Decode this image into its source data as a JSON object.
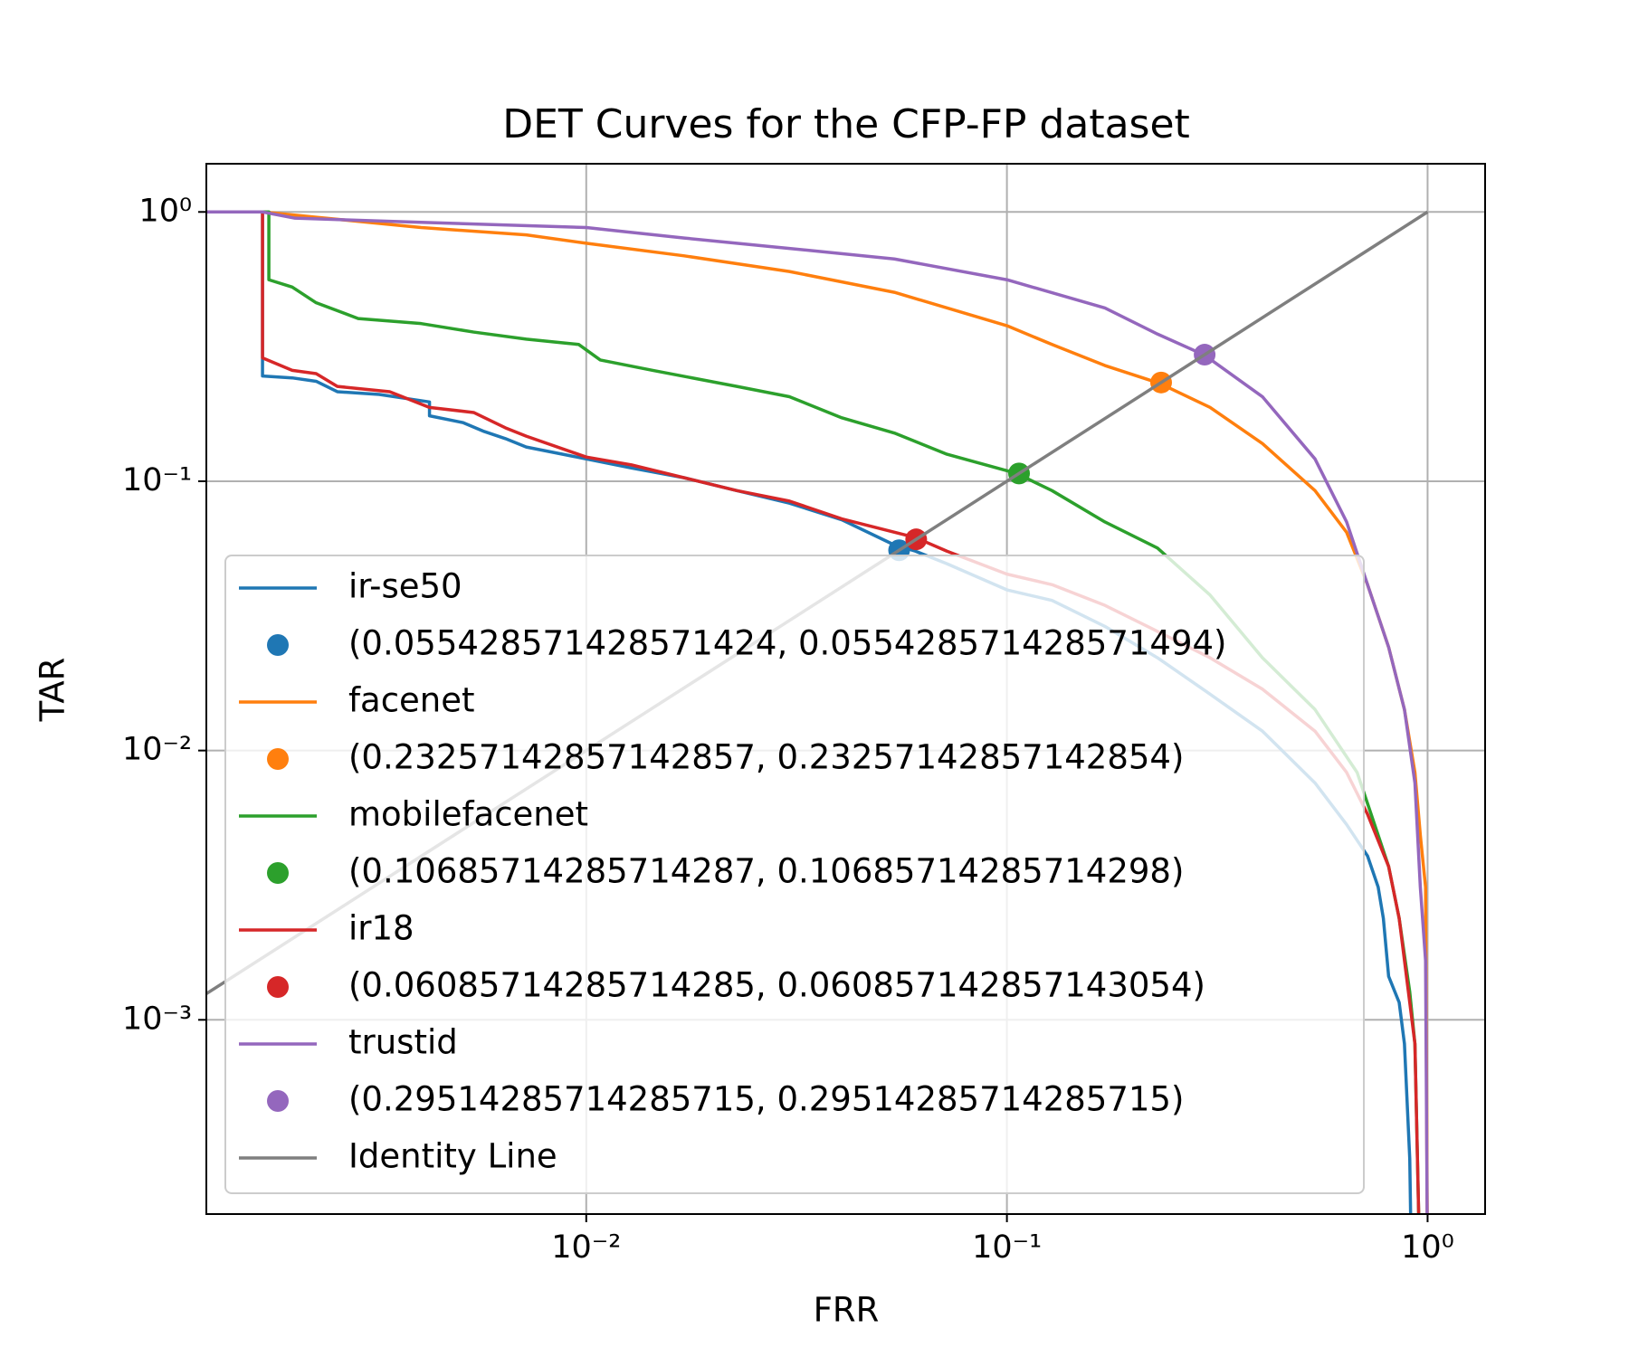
{
  "chart_data": {
    "type": "line",
    "title": "DET Curves for the CFP-FP dataset",
    "x_label": "FRR",
    "y_label": "TAR",
    "xscale": "log",
    "yscale": "log",
    "xlim": [
      0.00125,
      1.37
    ],
    "ylim": [
      0.00019,
      1.51
    ],
    "xticks": [
      {
        "value": 0.01,
        "label": "10⁻²"
      },
      {
        "value": 0.1,
        "label": "10⁻¹"
      },
      {
        "value": 1,
        "label": "10⁰"
      }
    ],
    "yticks": [
      {
        "value": 0.001,
        "label": "10⁻³"
      },
      {
        "value": 0.01,
        "label": "10⁻²"
      },
      {
        "value": 0.1,
        "label": "10⁻¹"
      },
      {
        "value": 1,
        "label": "10⁰"
      }
    ],
    "grid": true,
    "legend": "lower left",
    "series": [
      {
        "name": "ir-se50",
        "type": "line",
        "color": "#1f77b4",
        "x": [
          0.00125,
          0.0017,
          0.0017,
          0.002,
          0.00228,
          0.00256,
          0.00322,
          0.00424,
          0.00424,
          0.0051,
          0.00572,
          0.00642,
          0.0072,
          0.01,
          0.0128,
          0.0171,
          0.0228,
          0.0304,
          0.0405,
          0.054,
          0.0606,
          0.072,
          0.1,
          0.128,
          0.171,
          0.228,
          0.304,
          0.405,
          0.54,
          0.642,
          0.72,
          0.763,
          0.785,
          0.808,
          0.856,
          0.881,
          0.907,
          0.917
        ],
        "values": [
          1,
          1,
          0.246,
          0.242,
          0.235,
          0.215,
          0.21,
          0.197,
          0.175,
          0.165,
          0.153,
          0.144,
          0.134,
          0.121,
          0.112,
          0.103,
          0.0923,
          0.0829,
          0.0719,
          0.058,
          0.055,
          0.0494,
          0.0395,
          0.0361,
          0.0289,
          0.0221,
          0.0162,
          0.0118,
          0.00758,
          0.00531,
          0.00406,
          0.00311,
          0.00238,
          0.00145,
          0.00116,
          0.000815,
          0.000305,
          0.0001
        ]
      },
      {
        "name": "(0.055428571428571424, 0.055428571428571494)",
        "type": "scatter",
        "color": "#1f77b4",
        "x": [
          0.055428571428571424
        ],
        "values": [
          0.055428571428571494
        ]
      },
      {
        "name": "facenet",
        "type": "line",
        "color": "#ff7f0e",
        "x": [
          0.00125,
          0.0017,
          0.00228,
          0.00405,
          0.0072,
          0.01,
          0.0171,
          0.0304,
          0.054,
          0.1,
          0.128,
          0.171,
          0.2305,
          0.304,
          0.405,
          0.54,
          0.642,
          0.72,
          0.808,
          0.881,
          0.933,
          0.961,
          0.989,
          1.0
        ],
        "values": [
          1,
          1,
          0.956,
          0.875,
          0.822,
          0.765,
          0.687,
          0.601,
          0.503,
          0.378,
          0.322,
          0.269,
          0.231,
          0.188,
          0.138,
          0.0923,
          0.0646,
          0.0413,
          0.0242,
          0.0142,
          0.00829,
          0.00485,
          0.00311,
          0.0001
        ]
      },
      {
        "name": "(0.23257142857142857, 0.23257142857142854)",
        "type": "scatter",
        "color": "#ff7f0e",
        "x": [
          0.23257142857142857
        ],
        "values": [
          0.23257142857142854
        ]
      },
      {
        "name": "mobilefacenet",
        "type": "line",
        "color": "#2ca02c",
        "x": [
          0.00125,
          0.00176,
          0.00176,
          0.002,
          0.00228,
          0.00287,
          0.00405,
          0.0054,
          0.0072,
          0.0096,
          0.0108,
          0.0144,
          0.0228,
          0.0304,
          0.0405,
          0.054,
          0.072,
          0.1053,
          0.128,
          0.171,
          0.228,
          0.304,
          0.405,
          0.54,
          0.68,
          0.763,
          0.808,
          0.856,
          0.907,
          0.933,
          0.961
        ],
        "values": [
          1,
          1,
          0.56,
          0.526,
          0.46,
          0.402,
          0.385,
          0.358,
          0.337,
          0.322,
          0.282,
          0.258,
          0.225,
          0.206,
          0.172,
          0.151,
          0.126,
          0.107,
          0.0923,
          0.0706,
          0.0565,
          0.0378,
          0.0221,
          0.0142,
          0.00829,
          0.00485,
          0.00371,
          0.00238,
          0.00127,
          0.000815,
          0.0001
        ]
      },
      {
        "name": "(0.10685714285714287, 0.10685714285714298)",
        "type": "scatter",
        "color": "#2ca02c",
        "x": [
          0.10685714285714287
        ],
        "values": [
          0.10685714285714298
        ]
      },
      {
        "name": "ir18",
        "type": "line",
        "color": "#d62728",
        "x": [
          0.00125,
          0.0017,
          0.0017,
          0.002,
          0.00228,
          0.00256,
          0.00341,
          0.00424,
          0.0054,
          0.00642,
          0.0072,
          0.01,
          0.0128,
          0.0171,
          0.0228,
          0.0304,
          0.0405,
          0.0606,
          0.072,
          0.1,
          0.128,
          0.171,
          0.228,
          0.304,
          0.405,
          0.54,
          0.642,
          0.72,
          0.808,
          0.856,
          0.907,
          0.933,
          0.961
        ],
        "values": [
          1,
          1,
          0.287,
          0.258,
          0.251,
          0.225,
          0.215,
          0.188,
          0.18,
          0.158,
          0.147,
          0.123,
          0.115,
          0.103,
          0.0923,
          0.0844,
          0.0725,
          0.0618,
          0.055,
          0.0452,
          0.0413,
          0.0346,
          0.0277,
          0.0221,
          0.0169,
          0.0118,
          0.00829,
          0.0058,
          0.00371,
          0.00238,
          0.00116,
          0.000815,
          0.0001
        ]
      },
      {
        "name": "(0.06085714285714285, 0.060857142857143054)",
        "type": "scatter",
        "color": "#d62728",
        "x": [
          0.06085714285714285
        ],
        "values": [
          0.060857142857143054
        ]
      },
      {
        "name": "trustid",
        "type": "line",
        "color": "#9467bd",
        "x": [
          0.00125,
          0.0017,
          0.00203,
          0.00405,
          0.01,
          0.0171,
          0.0304,
          0.054,
          0.1,
          0.171,
          0.228,
          0.295,
          0.405,
          0.54,
          0.642,
          0.72,
          0.808,
          0.881,
          0.933,
          0.961,
          0.989,
          1.0
        ],
        "values": [
          1,
          1,
          0.948,
          0.915,
          0.875,
          0.8,
          0.732,
          0.669,
          0.56,
          0.44,
          0.352,
          0.294,
          0.206,
          0.121,
          0.0706,
          0.0413,
          0.0242,
          0.0142,
          0.00758,
          0.00311,
          0.00166,
          0.0001
        ]
      },
      {
        "name": "(0.29514285714285715, 0.29514285714285715)",
        "type": "scatter",
        "color": "#9467bd",
        "x": [
          0.29514285714285715
        ],
        "values": [
          0.29514285714285715
        ]
      },
      {
        "name": "Identity Line",
        "type": "line",
        "color": "#7f7f7f",
        "x": [
          0.00125,
          1
        ],
        "values": [
          0.00125,
          1
        ]
      }
    ]
  }
}
